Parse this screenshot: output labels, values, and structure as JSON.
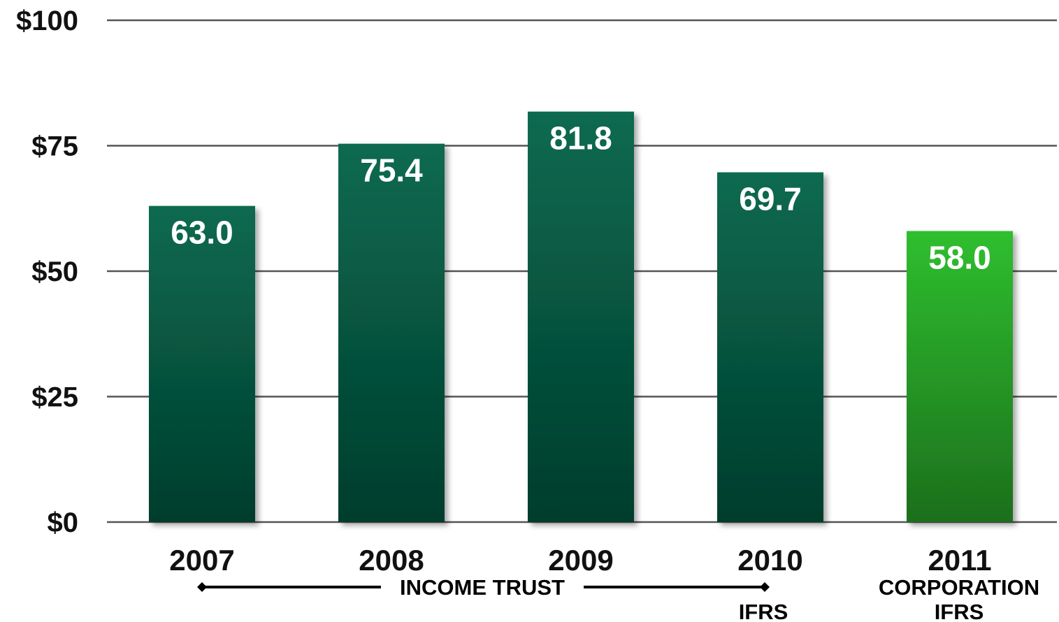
{
  "chart_data": {
    "type": "bar",
    "categories": [
      "2007",
      "2008",
      "2009",
      "2010",
      "2011"
    ],
    "values": [
      63.0,
      75.4,
      81.8,
      69.7,
      58.0
    ],
    "value_labels": [
      "63.0",
      "75.4",
      "81.8",
      "69.7",
      "58.0"
    ],
    "ylim": [
      0,
      100
    ],
    "yticks": [
      0,
      25,
      50,
      75,
      100
    ],
    "ytick_labels": [
      "$0",
      "$25",
      "$50",
      "$75",
      "$100"
    ],
    "grid": true,
    "bar_colors": [
      "dark-green",
      "dark-green",
      "dark-green",
      "dark-green",
      "bright-green"
    ],
    "colors": {
      "dark_green_top": "#0a6a50",
      "dark_green_bottom": "#033d2c",
      "bright_green_top": "#2fbf2f",
      "bright_green_bottom": "#1c6f1c",
      "gridline": "#555555"
    },
    "annotations": {
      "income_trust": "INCOME TRUST",
      "ifrs_2010": "IFRS",
      "corporation": "CORPORATION",
      "ifrs_2011": "IFRS"
    }
  }
}
